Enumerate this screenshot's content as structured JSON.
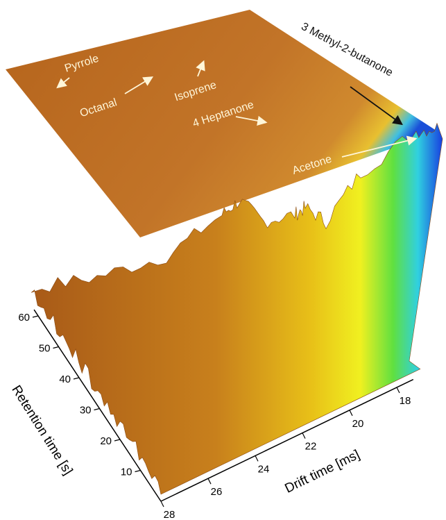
{
  "chart_data": {
    "type": "surface",
    "x_label": "Drift time [ms]",
    "y_label": "Retention time [s]",
    "xlim": [
      17.3,
      28
    ],
    "xticks": [
      18,
      20,
      22,
      24,
      26,
      28
    ],
    "ylim": [
      0,
      62
    ],
    "yticks": [
      10,
      20,
      30,
      40,
      50,
      60
    ],
    "annotations": [
      "Pyrrole",
      "Octanal",
      "Isoprene",
      "4 Heptanone",
      "3 Methyl-2-butanone",
      "Acetone"
    ]
  }
}
